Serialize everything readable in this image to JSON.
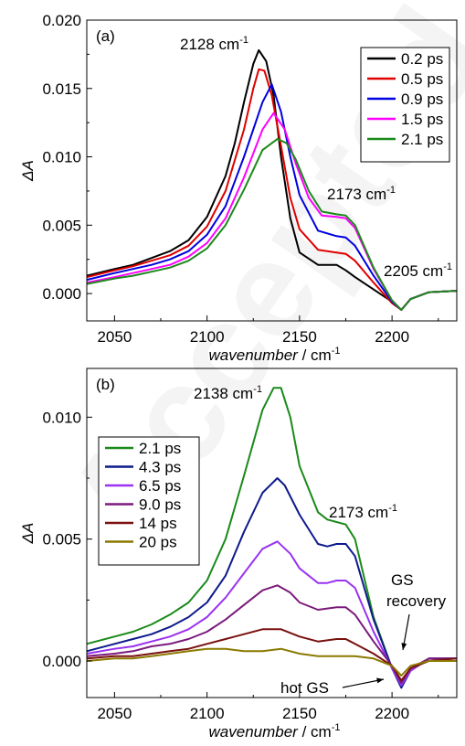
{
  "watermark": "Accepted",
  "chart_data": [
    {
      "type": "line",
      "panel_label": "(a)",
      "xlabel_italic": "wavenumber",
      "xlabel_unit": " / cm",
      "xlabel_sup": "-1",
      "ylabel": "ΔA",
      "xlim": [
        2035,
        2235
      ],
      "ylim": [
        -0.002,
        0.02
      ],
      "x_ticks": [
        2050,
        2100,
        2150,
        2200
      ],
      "x_tick_labels": [
        "2050",
        "2100",
        "2150",
        "2200"
      ],
      "y_ticks": [
        0,
        0.005,
        0.01,
        0.015,
        0.02
      ],
      "y_tick_labels": [
        "0.000",
        "0.005",
        "0.010",
        "0.015",
        "0.020"
      ],
      "legend_position": "top-right",
      "annotations": [
        {
          "text": "2128 cm",
          "sup": "-1",
          "x": 2108,
          "y": 0.0182
        },
        {
          "text": "2173 cm",
          "sup": "-1",
          "x": 2160,
          "y": 0.0066
        },
        {
          "text": "2205 cm",
          "sup": "-1",
          "x": 2193,
          "y": 0.0014
        }
      ],
      "series": [
        {
          "name": "0.2 ps",
          "color": "#000000",
          "x": [
            2035,
            2050,
            2060,
            2070,
            2080,
            2090,
            2100,
            2110,
            2115,
            2120,
            2125,
            2128,
            2132,
            2136,
            2140,
            2145,
            2150,
            2160,
            2170,
            2175,
            2180,
            2190,
            2200,
            2205,
            2210,
            2220,
            2235
          ],
          "y": [
            0.0013,
            0.0018,
            0.0021,
            0.0026,
            0.0031,
            0.0039,
            0.0056,
            0.0086,
            0.011,
            0.014,
            0.0168,
            0.0178,
            0.017,
            0.0145,
            0.01,
            0.0055,
            0.003,
            0.0021,
            0.0021,
            0.0017,
            0.0012,
            0.0003,
            -0.0006,
            -0.0012,
            -0.0004,
            0.0001,
            0.0002
          ]
        },
        {
          "name": "0.5 ps",
          "color": "#e00000",
          "x": [
            2035,
            2050,
            2060,
            2070,
            2080,
            2090,
            2100,
            2110,
            2120,
            2125,
            2128,
            2131,
            2135,
            2140,
            2145,
            2150,
            2160,
            2170,
            2175,
            2180,
            2190,
            2200,
            2205,
            2210,
            2220,
            2235
          ],
          "y": [
            0.0012,
            0.0017,
            0.002,
            0.0024,
            0.0028,
            0.0035,
            0.0049,
            0.0075,
            0.012,
            0.015,
            0.0164,
            0.0163,
            0.0145,
            0.0108,
            0.007,
            0.0047,
            0.0032,
            0.003,
            0.0029,
            0.0024,
            0.0008,
            -0.0007,
            -0.0012,
            -0.0004,
            0.0001,
            0.0002
          ]
        },
        {
          "name": "0.9 ps",
          "color": "#0000e0",
          "x": [
            2035,
            2050,
            2060,
            2070,
            2080,
            2090,
            2100,
            2110,
            2120,
            2130,
            2135,
            2140,
            2145,
            2150,
            2160,
            2170,
            2175,
            2180,
            2190,
            2200,
            2205,
            2210,
            2220,
            2235
          ],
          "y": [
            0.001,
            0.0015,
            0.0018,
            0.0021,
            0.0025,
            0.0031,
            0.0043,
            0.0064,
            0.01,
            0.014,
            0.0153,
            0.0133,
            0.01,
            0.0072,
            0.0046,
            0.0042,
            0.0041,
            0.0035,
            0.0013,
            -0.0006,
            -0.0012,
            -0.0004,
            0.0001,
            0.0002
          ]
        },
        {
          "name": "1.5 ps",
          "color": "#ff00ff",
          "x": [
            2035,
            2050,
            2060,
            2070,
            2080,
            2090,
            2100,
            2110,
            2120,
            2130,
            2136,
            2142,
            2148,
            2155,
            2162,
            2170,
            2175,
            2180,
            2190,
            2200,
            2205,
            2210,
            2220,
            2235
          ],
          "y": [
            0.0008,
            0.0012,
            0.0015,
            0.0018,
            0.0021,
            0.0027,
            0.0037,
            0.0055,
            0.0085,
            0.012,
            0.0132,
            0.012,
            0.0095,
            0.007,
            0.0057,
            0.0056,
            0.0055,
            0.0048,
            0.0018,
            -0.0005,
            -0.0012,
            -0.0004,
            0.0001,
            0.0002
          ]
        },
        {
          "name": "2.1 ps",
          "color": "#1a8a1a",
          "x": [
            2035,
            2050,
            2060,
            2070,
            2080,
            2090,
            2100,
            2110,
            2120,
            2130,
            2138,
            2143,
            2148,
            2155,
            2162,
            2170,
            2175,
            2180,
            2190,
            2200,
            2205,
            2210,
            2220,
            2235
          ],
          "y": [
            0.0007,
            0.0011,
            0.0013,
            0.0016,
            0.0019,
            0.0024,
            0.0033,
            0.005,
            0.0076,
            0.0105,
            0.0113,
            0.011,
            0.0098,
            0.0075,
            0.006,
            0.0058,
            0.0057,
            0.005,
            0.0019,
            -0.0005,
            -0.0012,
            -0.0004,
            0.0001,
            0.0002
          ]
        }
      ]
    },
    {
      "type": "line",
      "panel_label": "(b)",
      "xlabel_italic": "wavenumber",
      "xlabel_unit": " / cm",
      "xlabel_sup": "-1",
      "ylabel": "ΔA",
      "xlim": [
        2035,
        2235
      ],
      "ylim": [
        -0.0015,
        0.012
      ],
      "x_ticks": [
        2050,
        2100,
        2150,
        2200
      ],
      "x_tick_labels": [
        "2050",
        "2100",
        "2150",
        "2200"
      ],
      "y_ticks": [
        0,
        0.005,
        0.01
      ],
      "y_tick_labels": [
        "0.000",
        "0.005",
        "0.010"
      ],
      "legend_position": "top-left",
      "annotations": [
        {
          "text": "2138 cm",
          "sup": "-1",
          "x": 2108,
          "y": 0.0113
        },
        {
          "text": "2173 cm",
          "sup": "-1",
          "x": 2160,
          "y": 0.0069
        },
        {
          "text": "GS",
          "x": 2205,
          "y": 0.0033
        },
        {
          "text": "recovery",
          "x": 2205,
          "y": 0.0017
        },
        {
          "text": "hot GS",
          "x": 2162,
          "y": -0.001
        }
      ],
      "series": [
        {
          "name": "2.1 ps",
          "color": "#1a8a1a",
          "x": [
            2035,
            2050,
            2060,
            2070,
            2080,
            2090,
            2100,
            2110,
            2120,
            2130,
            2136,
            2140,
            2145,
            2150,
            2160,
            2165,
            2170,
            2175,
            2180,
            2190,
            2200,
            2205,
            2210,
            2220,
            2235
          ],
          "y": [
            0.0007,
            0.001,
            0.0012,
            0.0015,
            0.0019,
            0.0024,
            0.0033,
            0.005,
            0.0076,
            0.0103,
            0.0112,
            0.0112,
            0.01,
            0.008,
            0.0061,
            0.0058,
            0.0057,
            0.0056,
            0.005,
            0.0018,
            -0.0003,
            -0.001,
            -0.0004,
            0.0001,
            0.0001
          ]
        },
        {
          "name": "4.3 ps",
          "color": "#0d1a8c",
          "x": [
            2035,
            2050,
            2060,
            2070,
            2080,
            2090,
            2100,
            2110,
            2120,
            2130,
            2138,
            2142,
            2150,
            2160,
            2165,
            2170,
            2175,
            2180,
            2190,
            2200,
            2205,
            2210,
            2220,
            2235
          ],
          "y": [
            0.0004,
            0.0007,
            0.0009,
            0.0011,
            0.0014,
            0.0018,
            0.0024,
            0.0035,
            0.0053,
            0.0069,
            0.0075,
            0.0072,
            0.006,
            0.0048,
            0.0047,
            0.0048,
            0.0048,
            0.0043,
            0.0017,
            -0.0003,
            -0.0011,
            -0.0004,
            0.0001,
            0.0001
          ]
        },
        {
          "name": "6.5 ps",
          "color": "#9a32f0",
          "x": [
            2035,
            2050,
            2060,
            2070,
            2080,
            2090,
            2100,
            2110,
            2120,
            2130,
            2138,
            2145,
            2150,
            2160,
            2165,
            2170,
            2175,
            2180,
            2190,
            2200,
            2205,
            2210,
            2220,
            2235
          ],
          "y": [
            0.0003,
            0.0005,
            0.0006,
            0.0008,
            0.001,
            0.0013,
            0.0018,
            0.0026,
            0.0036,
            0.0046,
            0.0049,
            0.0044,
            0.0038,
            0.0032,
            0.0032,
            0.0033,
            0.0033,
            0.003,
            0.0012,
            -0.0003,
            -0.001,
            -0.0004,
            0.0001,
            0.0001
          ]
        },
        {
          "name": "9.0 ps",
          "color": "#7b1a7b",
          "x": [
            2035,
            2050,
            2060,
            2070,
            2080,
            2090,
            2100,
            2110,
            2120,
            2130,
            2138,
            2145,
            2150,
            2160,
            2170,
            2175,
            2180,
            2190,
            2200,
            2205,
            2210,
            2220,
            2235
          ],
          "y": [
            0.0002,
            0.0003,
            0.0004,
            0.0006,
            0.0007,
            0.0009,
            0.0012,
            0.0017,
            0.0023,
            0.0029,
            0.0031,
            0.0028,
            0.0024,
            0.0021,
            0.0022,
            0.0022,
            0.0019,
            0.0008,
            -0.0002,
            -0.0009,
            -0.0003,
            0.0001,
            0.0001
          ]
        },
        {
          "name": "14 ps",
          "color": "#7a1010",
          "x": [
            2035,
            2050,
            2060,
            2070,
            2080,
            2090,
            2100,
            2110,
            2120,
            2130,
            2140,
            2150,
            2160,
            2170,
            2175,
            2180,
            2190,
            2200,
            2205,
            2210,
            2220,
            2235
          ],
          "y": [
            0.0001,
            0.0002,
            0.0002,
            0.0003,
            0.0004,
            0.0005,
            0.0007,
            0.0009,
            0.0011,
            0.0013,
            0.0013,
            0.001,
            0.0008,
            0.0009,
            0.0009,
            0.0007,
            0.0003,
            -0.0002,
            -0.0008,
            -0.0003,
            0.0,
            0.0001
          ]
        },
        {
          "name": "20 ps",
          "color": "#8a7a00",
          "x": [
            2035,
            2050,
            2060,
            2070,
            2080,
            2090,
            2100,
            2110,
            2120,
            2130,
            2140,
            2150,
            2160,
            2170,
            2180,
            2190,
            2200,
            2205,
            2210,
            2220,
            2235
          ],
          "y": [
            0.0,
            0.0001,
            0.0001,
            0.0002,
            0.0003,
            0.0004,
            0.0005,
            0.0005,
            0.0004,
            0.0004,
            0.0005,
            0.0003,
            0.0002,
            0.0002,
            0.0002,
            0.0001,
            -0.0002,
            -0.0006,
            -0.0002,
            0.0,
            0.0
          ]
        }
      ]
    }
  ]
}
